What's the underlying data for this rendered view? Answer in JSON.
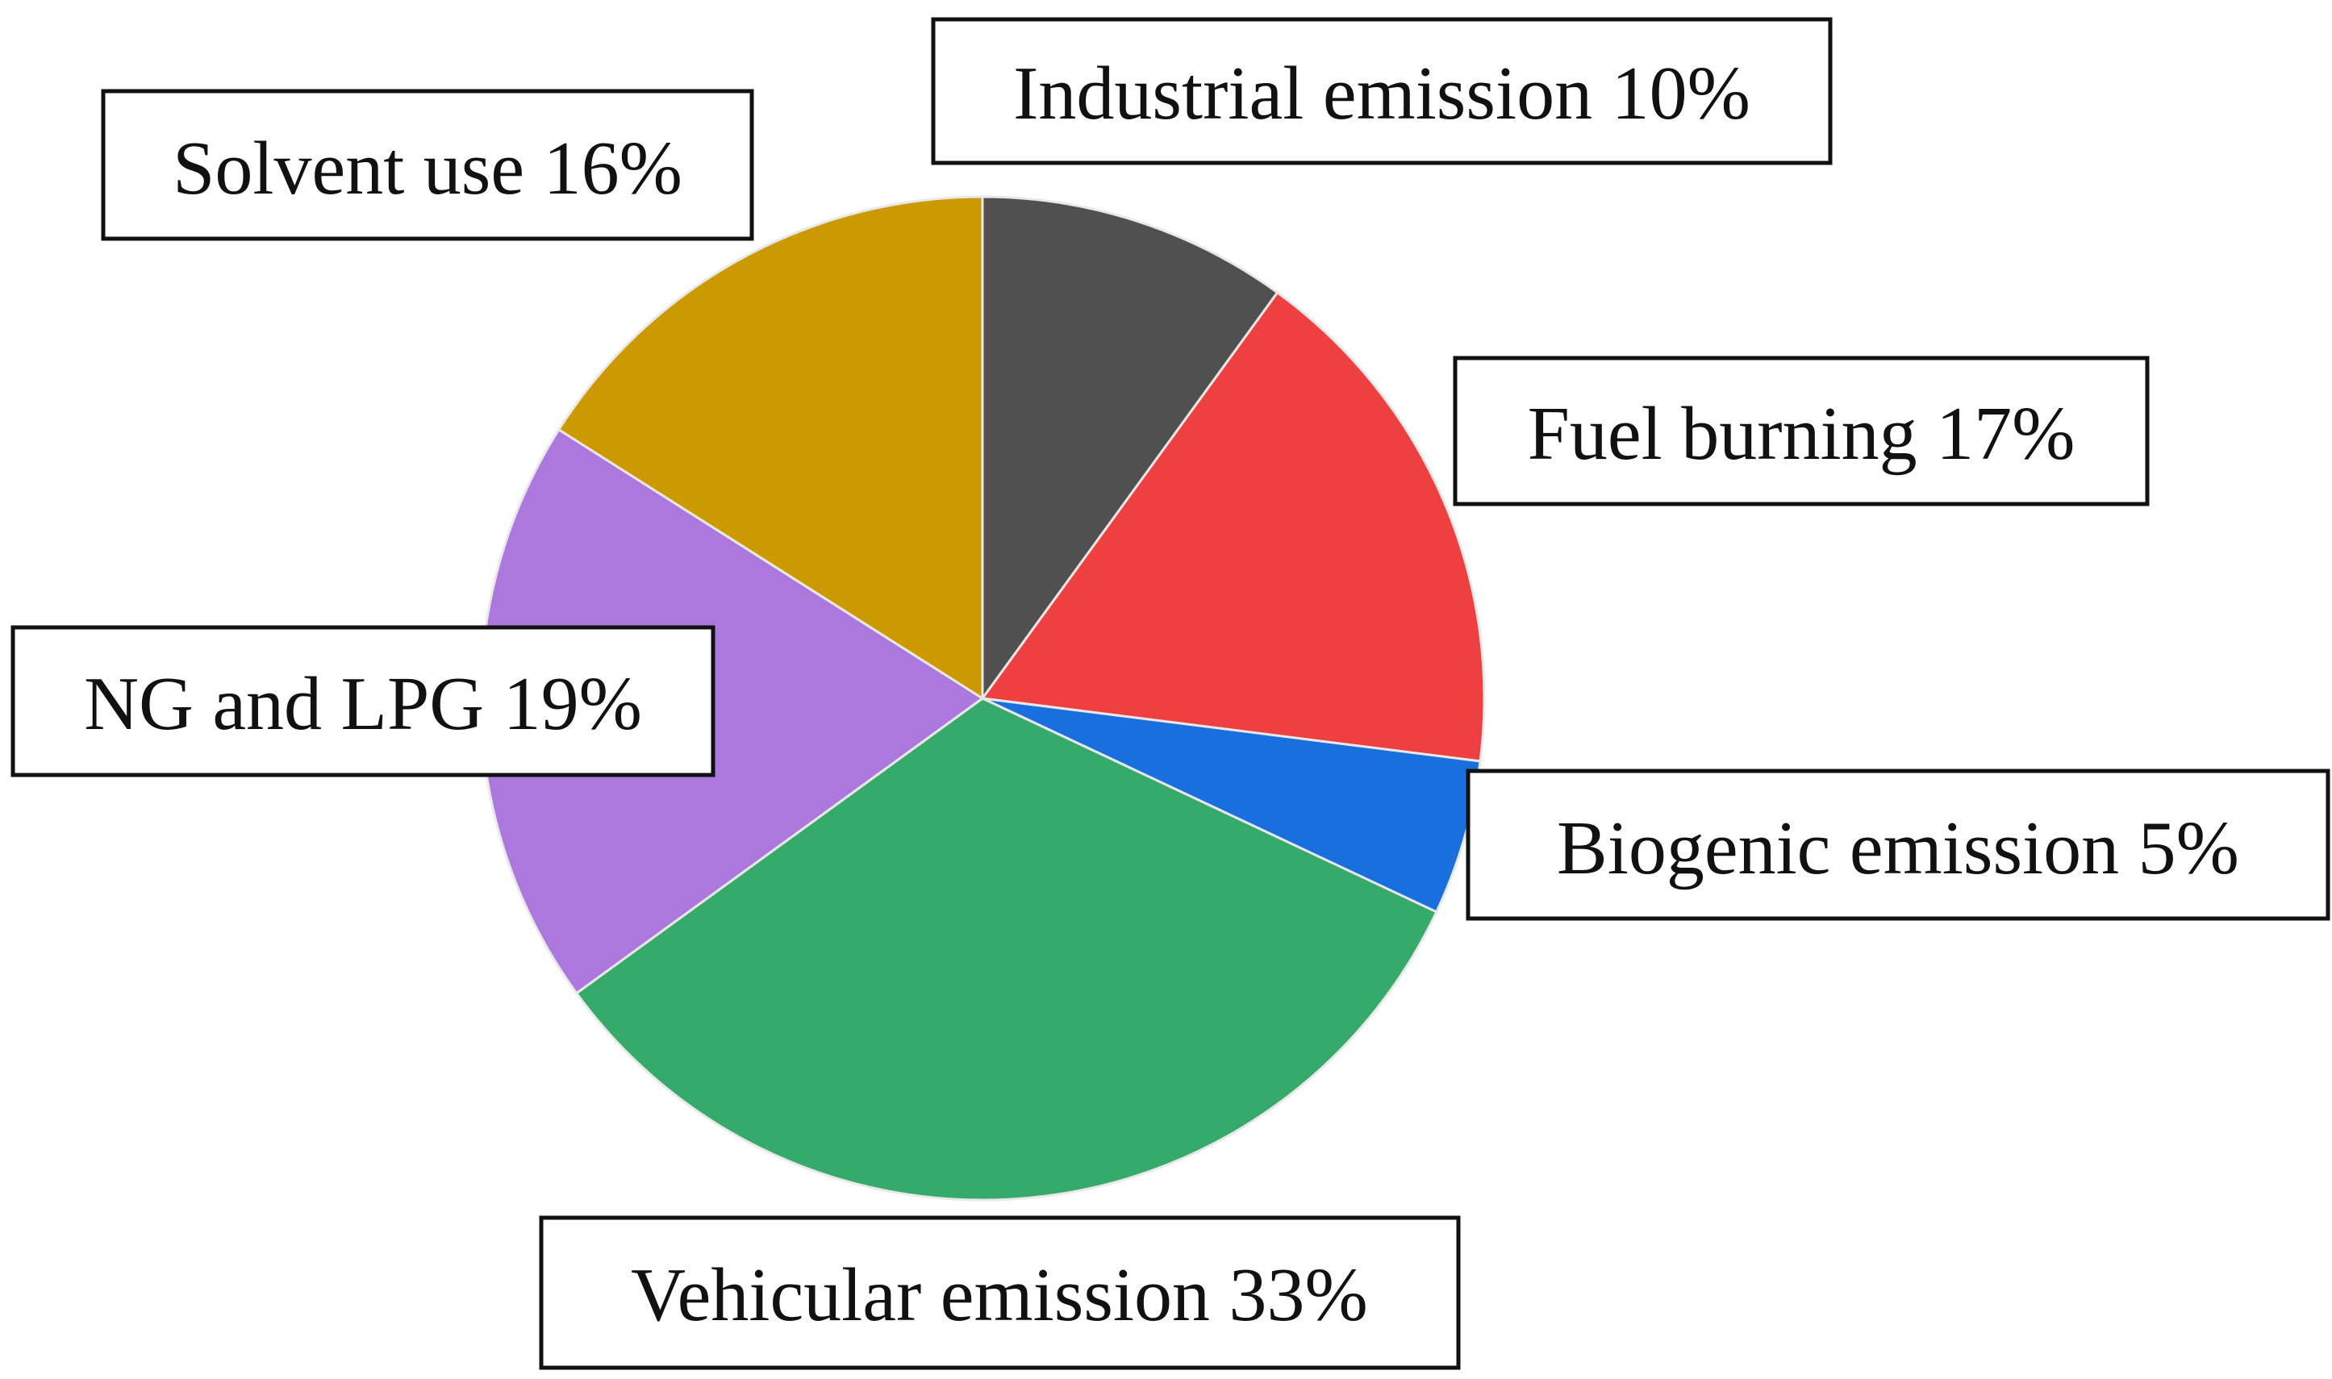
{
  "chart_data": {
    "type": "pie",
    "title": "",
    "start_angle_deg": 0,
    "direction": "clockwise",
    "slices": [
      {
        "label": "Industrial emission 10%",
        "value": 10,
        "color": "#505050"
      },
      {
        "label": "Fuel burning 17%",
        "value": 17,
        "color": "#ee4040"
      },
      {
        "label": "Biogenic emission 5%",
        "value": 5,
        "color": "#1a6fde"
      },
      {
        "label": "Vehicular emission 33%",
        "value": 33,
        "color": "#36aa6a"
      },
      {
        "label": "NG and LPG 19%",
        "value": 19,
        "color": "#ad78de"
      },
      {
        "label": "Solvent use 16%",
        "value": 16,
        "color": "#cc9900"
      }
    ]
  }
}
